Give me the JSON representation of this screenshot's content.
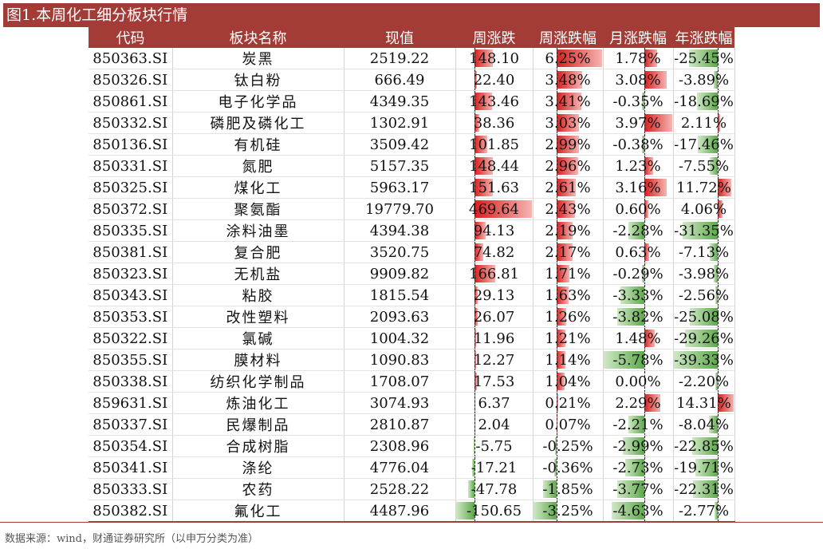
{
  "title": "图1.本周化工细分板块行情",
  "headers": [
    "代码",
    "板块名称",
    "现值",
    "周涨跌",
    "周涨跌幅",
    "月涨跌幅",
    "年涨跌幅"
  ],
  "rows": [
    {
      "code": "850363.SI",
      "name": "炭黑",
      "value": "2519.22",
      "week_chg": "148.10",
      "week_pct": "6.25%",
      "month_pct": "1.78%",
      "year_pct": "-25.45%"
    },
    {
      "code": "850326.SI",
      "name": "钛白粉",
      "value": "666.49",
      "week_chg": "22.40",
      "week_pct": "3.48%",
      "month_pct": "3.08%",
      "year_pct": "-3.89%"
    },
    {
      "code": "850861.SI",
      "name": "电子化学品",
      "value": "4349.35",
      "week_chg": "143.46",
      "week_pct": "3.41%",
      "month_pct": "-0.35%",
      "year_pct": "-18.69%"
    },
    {
      "code": "850332.SI",
      "name": "磷肥及磷化工",
      "value": "1302.91",
      "week_chg": "38.36",
      "week_pct": "3.03%",
      "month_pct": "3.97%",
      "year_pct": "2.11%"
    },
    {
      "code": "850136.SI",
      "name": "有机硅",
      "value": "3509.42",
      "week_chg": "101.85",
      "week_pct": "2.99%",
      "month_pct": "-0.38%",
      "year_pct": "-17.46%"
    },
    {
      "code": "850331.SI",
      "name": "氮肥",
      "value": "5157.35",
      "week_chg": "148.44",
      "week_pct": "2.96%",
      "month_pct": "1.23%",
      "year_pct": "-7.55%"
    },
    {
      "code": "850325.SI",
      "name": "煤化工",
      "value": "5963.17",
      "week_chg": "151.63",
      "week_pct": "2.61%",
      "month_pct": "3.16%",
      "year_pct": "11.72%"
    },
    {
      "code": "850372.SI",
      "name": "聚氨酯",
      "value": "19779.70",
      "week_chg": "469.64",
      "week_pct": "2.43%",
      "month_pct": "0.60%",
      "year_pct": "4.06%"
    },
    {
      "code": "850335.SI",
      "name": "涂料油墨",
      "value": "4394.38",
      "week_chg": "94.13",
      "week_pct": "2.19%",
      "month_pct": "-2.28%",
      "year_pct": "-31.35%"
    },
    {
      "code": "850381.SI",
      "name": "复合肥",
      "value": "3520.75",
      "week_chg": "74.82",
      "week_pct": "2.17%",
      "month_pct": "0.63%",
      "year_pct": "-7.13%"
    },
    {
      "code": "850323.SI",
      "name": "无机盐",
      "value": "9909.82",
      "week_chg": "166.81",
      "week_pct": "1.71%",
      "month_pct": "-0.29%",
      "year_pct": "-3.98%"
    },
    {
      "code": "850343.SI",
      "name": "粘胶",
      "value": "1815.54",
      "week_chg": "29.13",
      "week_pct": "1.63%",
      "month_pct": "-3.33%",
      "year_pct": "-2.56%"
    },
    {
      "code": "850353.SI",
      "name": "改性塑料",
      "value": "2093.63",
      "week_chg": "26.07",
      "week_pct": "1.26%",
      "month_pct": "-3.82%",
      "year_pct": "-25.08%"
    },
    {
      "code": "850322.SI",
      "name": "氯碱",
      "value": "1004.32",
      "week_chg": "11.96",
      "week_pct": "1.21%",
      "month_pct": "1.48%",
      "year_pct": "-29.26%"
    },
    {
      "code": "850355.SI",
      "name": "膜材料",
      "value": "1090.83",
      "week_chg": "12.27",
      "week_pct": "1.14%",
      "month_pct": "-5.78%",
      "year_pct": "-39.33%"
    },
    {
      "code": "850338.SI",
      "name": "纺织化学制品",
      "value": "1708.07",
      "week_chg": "17.53",
      "week_pct": "1.04%",
      "month_pct": "0.00%",
      "year_pct": "-2.20%"
    },
    {
      "code": "859631.SI",
      "name": "炼油化工",
      "value": "3074.93",
      "week_chg": "6.37",
      "week_pct": "0.21%",
      "month_pct": "2.29%",
      "year_pct": "14.31%"
    },
    {
      "code": "850337.SI",
      "name": "民爆制品",
      "value": "2810.87",
      "week_chg": "2.04",
      "week_pct": "0.07%",
      "month_pct": "-2.21%",
      "year_pct": "-8.04%"
    },
    {
      "code": "850354.SI",
      "name": "合成树脂",
      "value": "2308.96",
      "week_chg": "-5.75",
      "week_pct": "-0.25%",
      "month_pct": "-2.99%",
      "year_pct": "-22.85%"
    },
    {
      "code": "850341.SI",
      "name": "涤纶",
      "value": "4776.04",
      "week_chg": "-17.21",
      "week_pct": "-0.36%",
      "month_pct": "-2.73%",
      "year_pct": "-19.71%"
    },
    {
      "code": "850333.SI",
      "name": "农药",
      "value": "2528.22",
      "week_chg": "-47.78",
      "week_pct": "-1.85%",
      "month_pct": "-3.77%",
      "year_pct": "-22.31%"
    },
    {
      "code": "850382.SI",
      "name": "氟化工",
      "value": "4487.96",
      "week_chg": "-150.65",
      "week_pct": "-3.25%",
      "month_pct": "-4.63%",
      "year_pct": "-2.77%"
    }
  ],
  "bar_columns": {
    "week_chg": {
      "min": -150.65,
      "max": 469.64
    },
    "week_pct": {
      "min": -3.25,
      "max": 6.25
    },
    "month_pct": {
      "min": -5.78,
      "max": 3.97
    },
    "year_pct": {
      "min": -39.33,
      "max": 14.31
    }
  },
  "colors": {
    "header": "#a33c37",
    "positive_bar": "#d6201f",
    "negative_bar": "#5da84a"
  },
  "footnote": "数据来源：wind，财通证券研究所（以申万分类为准）"
}
